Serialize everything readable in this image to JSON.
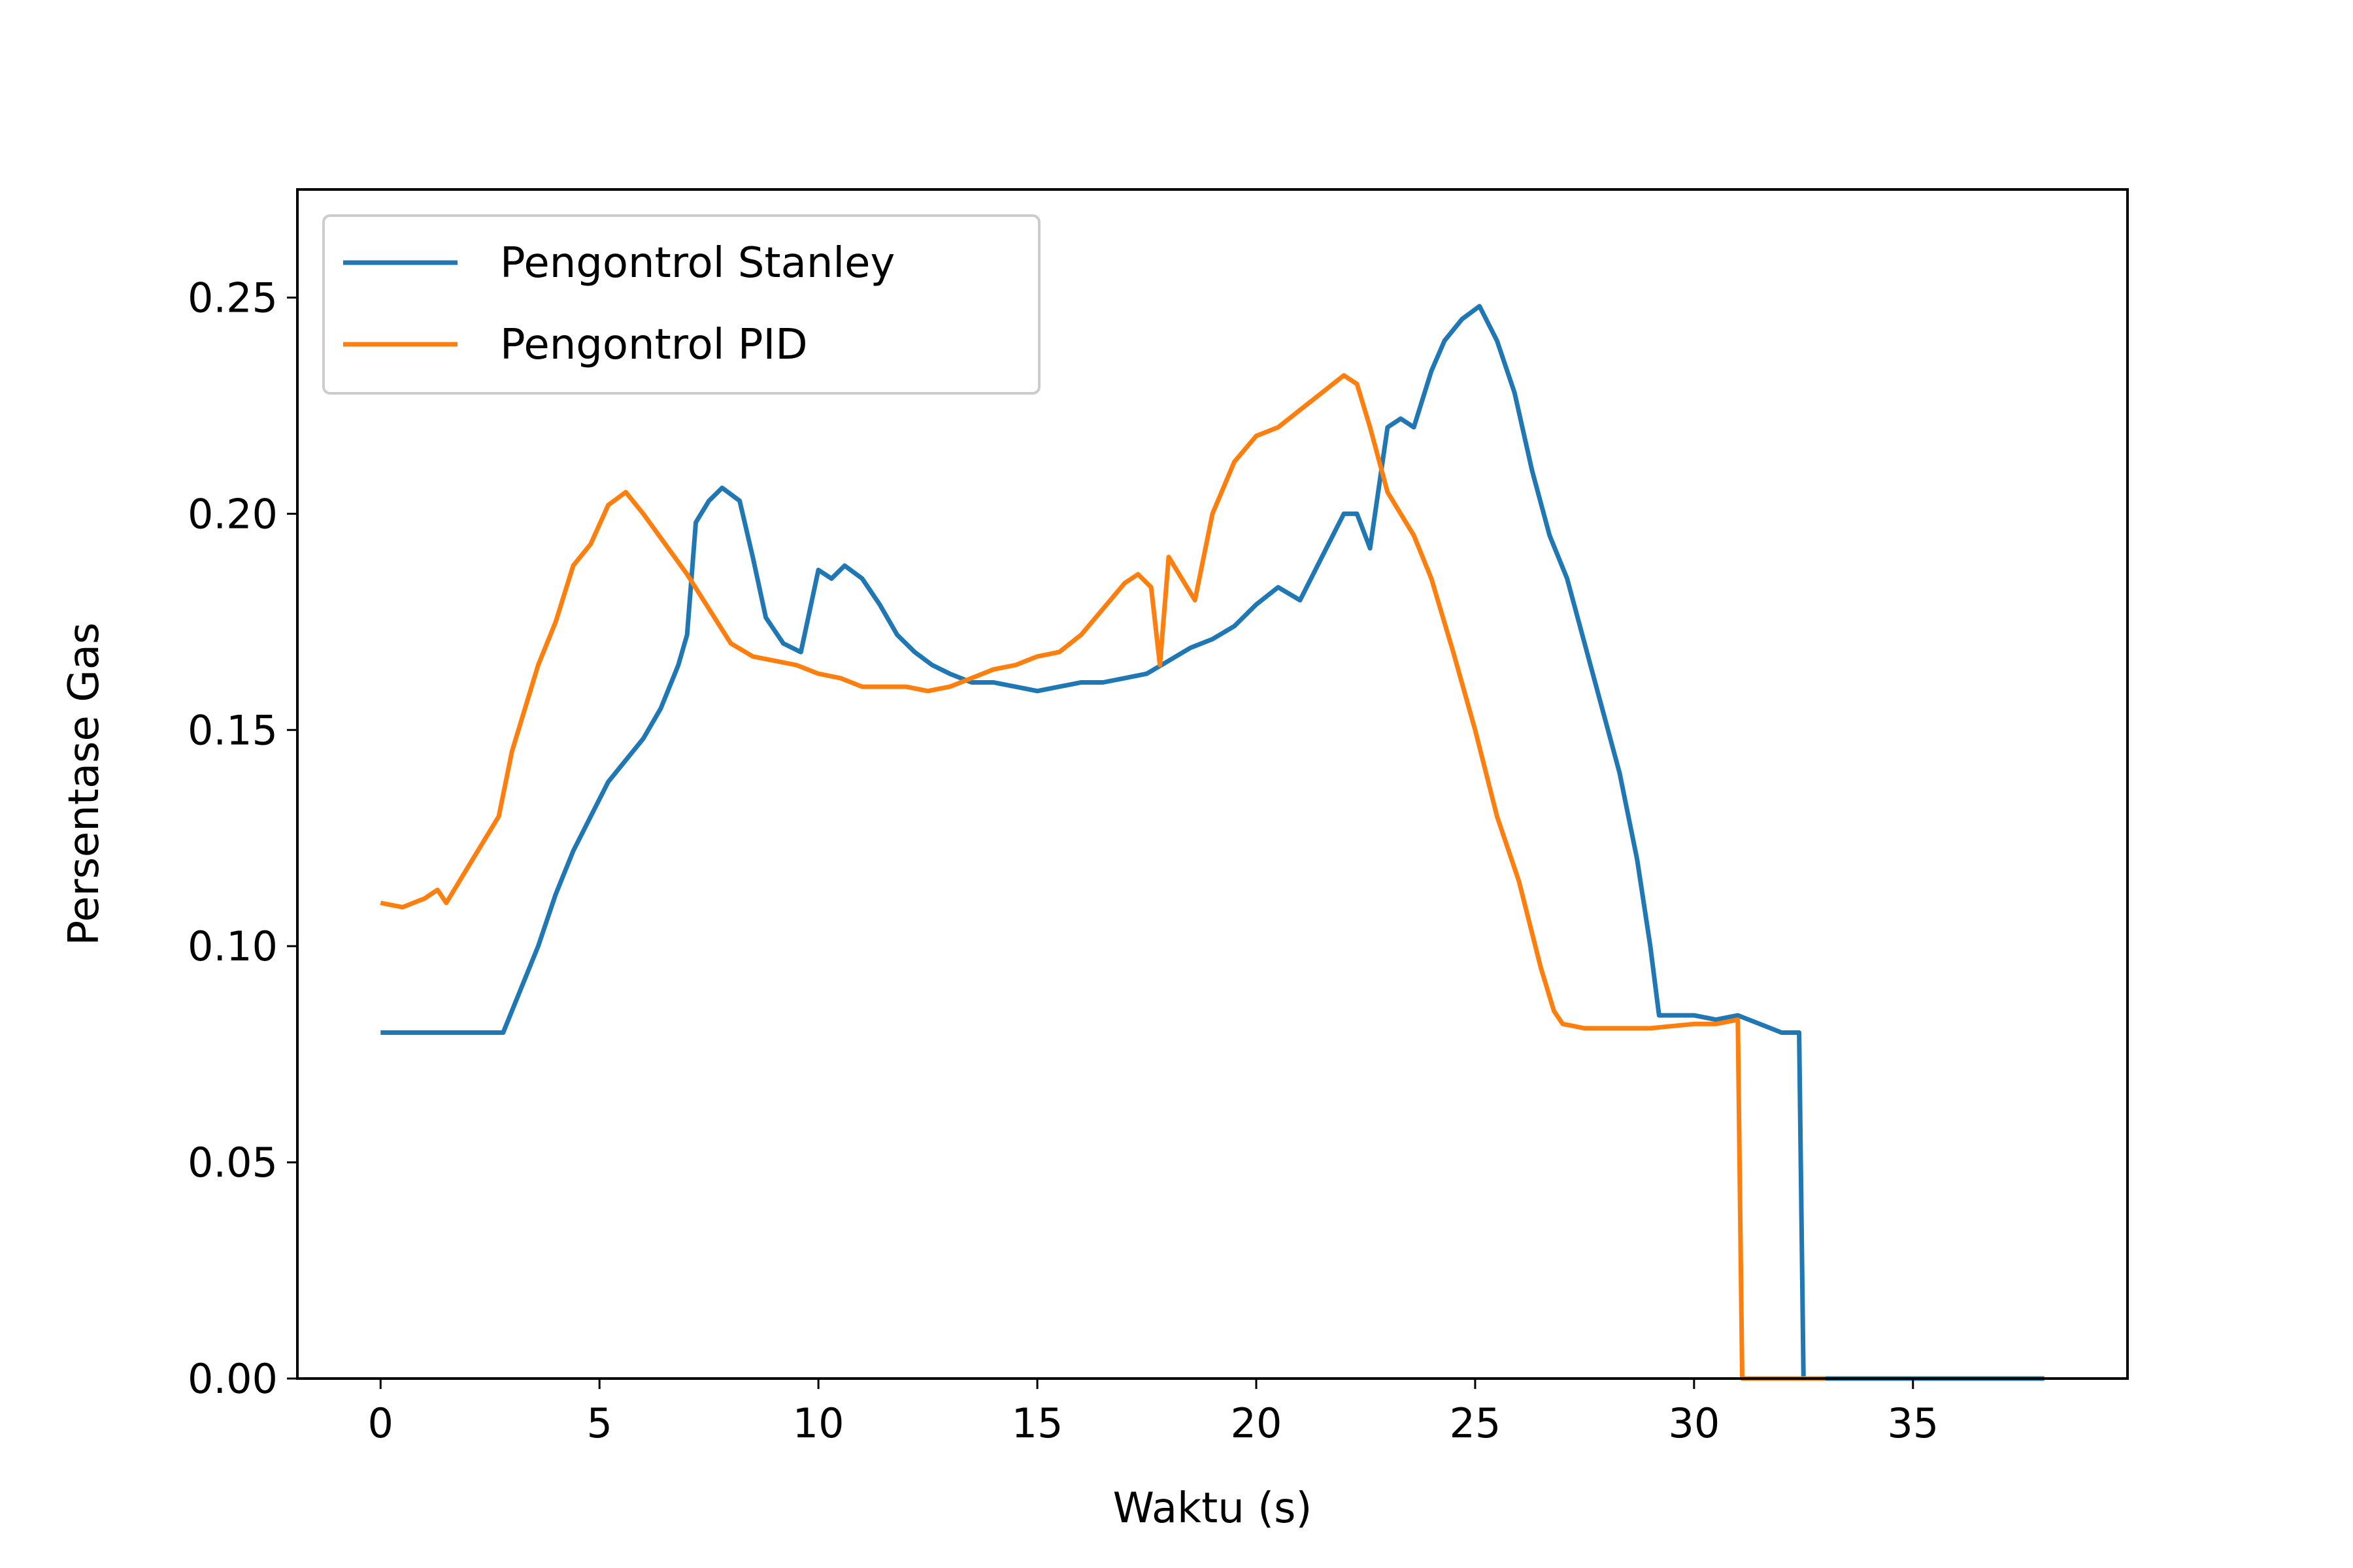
{
  "chart_data": {
    "type": "line",
    "title": "",
    "xlabel": "Waktu (s)",
    "ylabel": "Persentase Gas",
    "xlim": [
      -1.9,
      39.9
    ],
    "ylim": [
      0,
      0.275
    ],
    "xticks": [
      0,
      5,
      10,
      15,
      20,
      25,
      30,
      35
    ],
    "xtick_labels": [
      "0",
      "5",
      "10",
      "15",
      "20",
      "25",
      "30",
      "35"
    ],
    "yticks": [
      0,
      0.05,
      0.1,
      0.15,
      0.2,
      0.25
    ],
    "ytick_labels": [
      "0.00",
      "0.05",
      "0.10",
      "0.15",
      "0.20",
      "0.25"
    ],
    "grid": false,
    "legend_position": "upper-left",
    "series": [
      {
        "name": "Pengontrol Stanley",
        "color": "#1f77b4",
        "x": [
          0,
          2.8,
          3.2,
          3.6,
          4.0,
          4.4,
          4.8,
          5.2,
          5.6,
          6.0,
          6.4,
          6.8,
          7.0,
          7.2,
          7.5,
          7.8,
          8.2,
          8.5,
          8.8,
          9.2,
          9.6,
          10.0,
          10.3,
          10.6,
          11.0,
          11.4,
          11.8,
          12.2,
          12.6,
          13.0,
          13.5,
          14.0,
          14.5,
          15.0,
          15.5,
          16.0,
          16.5,
          17.0,
          17.5,
          18.0,
          18.5,
          19.0,
          19.5,
          20.0,
          20.5,
          21.0,
          21.5,
          22.0,
          22.3,
          22.6,
          23.0,
          23.3,
          23.6,
          24.0,
          24.3,
          24.7,
          25.1,
          25.5,
          25.9,
          26.3,
          26.7,
          27.1,
          27.5,
          27.9,
          28.3,
          28.7,
          29.0,
          29.2,
          29.6,
          30.0,
          30.5,
          31.0,
          31.5,
          32.0,
          32.4,
          32.5,
          33.0,
          34.0,
          35.0,
          36.0,
          37.0,
          38.0
        ],
        "y": [
          0.08,
          0.08,
          0.09,
          0.1,
          0.112,
          0.122,
          0.13,
          0.138,
          0.143,
          0.148,
          0.155,
          0.165,
          0.172,
          0.198,
          0.203,
          0.206,
          0.203,
          0.19,
          0.176,
          0.17,
          0.168,
          0.187,
          0.185,
          0.188,
          0.185,
          0.179,
          0.172,
          0.168,
          0.165,
          0.163,
          0.161,
          0.161,
          0.16,
          0.159,
          0.16,
          0.161,
          0.161,
          0.162,
          0.163,
          0.166,
          0.169,
          0.171,
          0.174,
          0.179,
          0.183,
          0.18,
          0.19,
          0.2,
          0.2,
          0.192,
          0.22,
          0.222,
          0.22,
          0.233,
          0.24,
          0.245,
          0.248,
          0.24,
          0.228,
          0.21,
          0.195,
          0.185,
          0.17,
          0.155,
          0.14,
          0.12,
          0.1,
          0.084,
          0.084,
          0.084,
          0.083,
          0.084,
          0.082,
          0.08,
          0.08,
          0.0,
          0.0,
          0.0,
          0.0,
          0.0,
          0.0,
          0.0
        ]
      },
      {
        "name": "Pengontrol PID",
        "color": "#ff7f0e",
        "x": [
          0,
          0.5,
          1.0,
          1.3,
          1.5,
          1.8,
          2.1,
          2.4,
          2.7,
          3.0,
          3.3,
          3.6,
          4.0,
          4.4,
          4.8,
          5.2,
          5.6,
          6.0,
          6.5,
          7.0,
          7.5,
          8.0,
          8.5,
          9.0,
          9.5,
          10.0,
          10.5,
          11.0,
          11.5,
          12.0,
          12.5,
          13.0,
          13.5,
          14.0,
          14.5,
          15.0,
          15.5,
          16.0,
          16.5,
          17.0,
          17.3,
          17.6,
          17.8,
          18.0,
          18.3,
          18.6,
          19.0,
          19.5,
          20.0,
          20.5,
          21.0,
          21.5,
          22.0,
          22.3,
          22.6,
          23.0,
          23.3,
          23.6,
          24.0,
          24.5,
          25.0,
          25.5,
          26.0,
          26.5,
          26.8,
          27.0,
          27.5,
          28.0,
          29.0,
          30.0,
          30.5,
          31.0,
          31.1,
          31.5,
          32.0,
          33.0
        ],
        "y": [
          0.11,
          0.109,
          0.111,
          0.113,
          0.11,
          0.115,
          0.12,
          0.125,
          0.13,
          0.145,
          0.155,
          0.165,
          0.175,
          0.188,
          0.193,
          0.202,
          0.205,
          0.2,
          0.193,
          0.186,
          0.178,
          0.17,
          0.167,
          0.166,
          0.165,
          0.163,
          0.162,
          0.16,
          0.16,
          0.16,
          0.159,
          0.16,
          0.162,
          0.164,
          0.165,
          0.167,
          0.168,
          0.172,
          0.178,
          0.184,
          0.186,
          0.183,
          0.165,
          0.19,
          0.185,
          0.18,
          0.2,
          0.212,
          0.218,
          0.22,
          0.224,
          0.228,
          0.232,
          0.23,
          0.22,
          0.205,
          0.2,
          0.195,
          0.185,
          0.168,
          0.15,
          0.13,
          0.115,
          0.095,
          0.085,
          0.082,
          0.081,
          0.081,
          0.081,
          0.082,
          0.082,
          0.083,
          0.0,
          0.0,
          0.0,
          0.0
        ]
      }
    ]
  }
}
